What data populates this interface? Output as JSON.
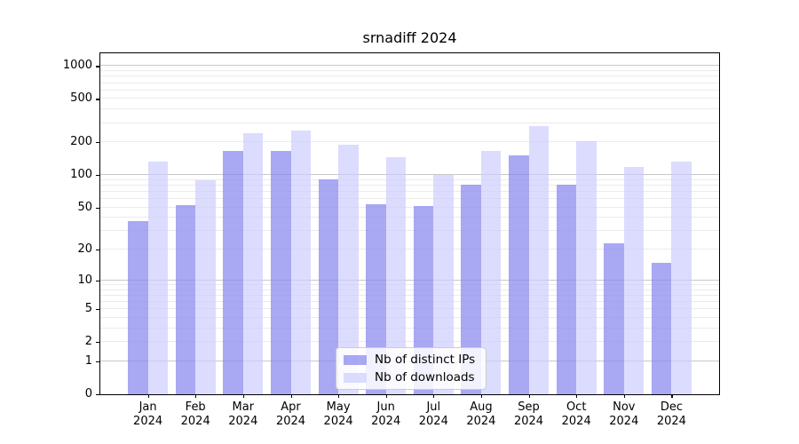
{
  "chart_data": {
    "type": "bar",
    "title": "srnadiff 2024",
    "categories": [
      "Jan",
      "Feb",
      "Mar",
      "Apr",
      "May",
      "Jun",
      "Jul",
      "Aug",
      "Sep",
      "Oct",
      "Nov",
      "Dec"
    ],
    "category_year": "2024",
    "series": [
      {
        "name": "Nb of distinct IPs",
        "color": "rgba(136,136,238,0.73)",
        "values": [
          37,
          53,
          166,
          167,
          91,
          54,
          52,
          81,
          152,
          81,
          23,
          15
        ]
      },
      {
        "name": "Nb of downloads",
        "color": "rgba(204,204,255,0.69)",
        "values": [
          133,
          90,
          243,
          257,
          189,
          147,
          101,
          167,
          283,
          205,
          119,
          132
        ]
      }
    ],
    "y_ticks": [
      0,
      1,
      2,
      5,
      10,
      20,
      50,
      100,
      200,
      500,
      1000
    ],
    "major_gridlines": [
      1,
      10,
      100,
      1000
    ],
    "gridline_major_color": "#c8c8c8",
    "gridline_minor_color": "#ebebeb",
    "scale": "log10(1+y)",
    "ylim": [
      0,
      1285
    ],
    "xlabel": "",
    "ylabel": "",
    "grid": true,
    "legend_position": "lower center"
  }
}
